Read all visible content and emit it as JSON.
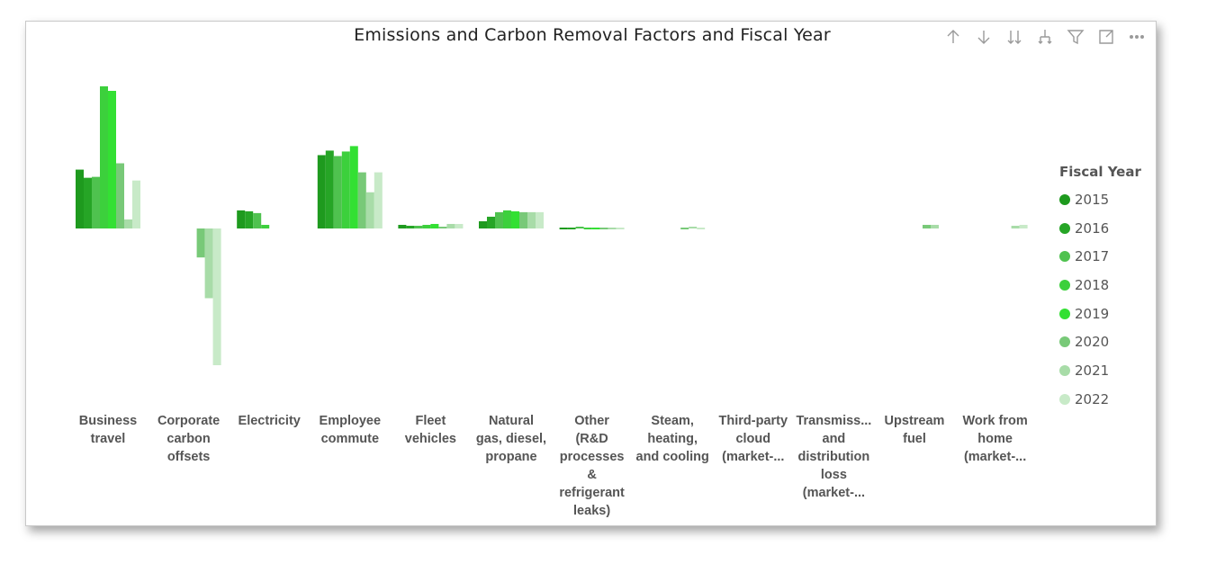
{
  "toolbar": {
    "icons": [
      "arrow-up-icon",
      "arrow-down-icon",
      "double-arrow-down-icon",
      "expand-hierarchy-icon",
      "filter-icon",
      "focus-mode-icon",
      "more-options-icon"
    ]
  },
  "legend": {
    "title": "Fiscal Year"
  },
  "colors": [
    "#1e9a1e",
    "#26a526",
    "#4fc24f",
    "#3cd03c",
    "#33e033",
    "#78c978",
    "#a8dca8",
    "#c8eac8"
  ],
  "chart_data": {
    "type": "bar",
    "title": "Emissions and Carbon Removal Factors and Fiscal Year",
    "xlabel": "",
    "ylabel": "",
    "grid": false,
    "legend_position": "right",
    "category_labels": [
      [
        "Business",
        "travel"
      ],
      [
        "Corporate",
        "carbon",
        "offsets"
      ],
      [
        "Electricity"
      ],
      [
        "Employee",
        "commute"
      ],
      [
        "Fleet",
        "vehicles"
      ],
      [
        "Natural",
        "gas, diesel,",
        "propane"
      ],
      [
        "Other",
        "(R&D",
        "processes",
        "&",
        "refrigerant",
        "leaks)"
      ],
      [
        "Steam,",
        "heating,",
        "and cooling"
      ],
      [
        "Third-party",
        "cloud",
        "(market-..."
      ],
      [
        "Transmiss...",
        "and",
        "distribution",
        "loss",
        "(market-..."
      ],
      [
        "Upstream",
        "fuel"
      ],
      [
        "Work from",
        "home",
        "(market-..."
      ]
    ],
    "categories": [
      "Business travel",
      "Corporate carbon offsets",
      "Electricity",
      "Employee commute",
      "Fleet vehicles",
      "Natural gas, diesel, propane",
      "Other (R&D processes & refrigerant leaks)",
      "Steam, heating, and cooling",
      "Third-party cloud (market-...",
      "Transmiss... and distribution loss (market-...",
      "Upstream fuel",
      "Work from home (market-..."
    ],
    "series": [
      {
        "name": "2015",
        "values": [
          65,
          0,
          20,
          81,
          4,
          8,
          1,
          0,
          0,
          0,
          0,
          0
        ]
      },
      {
        "name": "2016",
        "values": [
          56,
          0,
          19,
          86,
          3,
          13,
          1,
          0,
          0,
          0,
          0,
          0
        ]
      },
      {
        "name": "2017",
        "values": [
          57,
          0,
          17,
          80,
          3,
          18,
          2,
          0,
          0,
          0,
          0,
          0
        ]
      },
      {
        "name": "2018",
        "values": [
          157,
          0,
          4,
          85,
          4,
          20,
          1,
          0,
          0,
          0,
          0,
          0
        ]
      },
      {
        "name": "2019",
        "values": [
          152,
          0,
          0,
          91,
          5,
          19,
          1,
          0,
          0,
          0,
          0,
          0
        ]
      },
      {
        "name": "2020",
        "values": [
          72,
          -32,
          0,
          62,
          2,
          18,
          1,
          1,
          0,
          0,
          4,
          0
        ]
      },
      {
        "name": "2021",
        "values": [
          10,
          -77,
          0,
          40,
          5,
          18,
          1,
          2,
          0,
          0,
          4,
          3
        ]
      },
      {
        "name": "2022",
        "values": [
          53,
          -151,
          0,
          62,
          5,
          18,
          1,
          1,
          0,
          0,
          0,
          4
        ]
      }
    ],
    "ylim": [
      -160,
      160
    ]
  }
}
